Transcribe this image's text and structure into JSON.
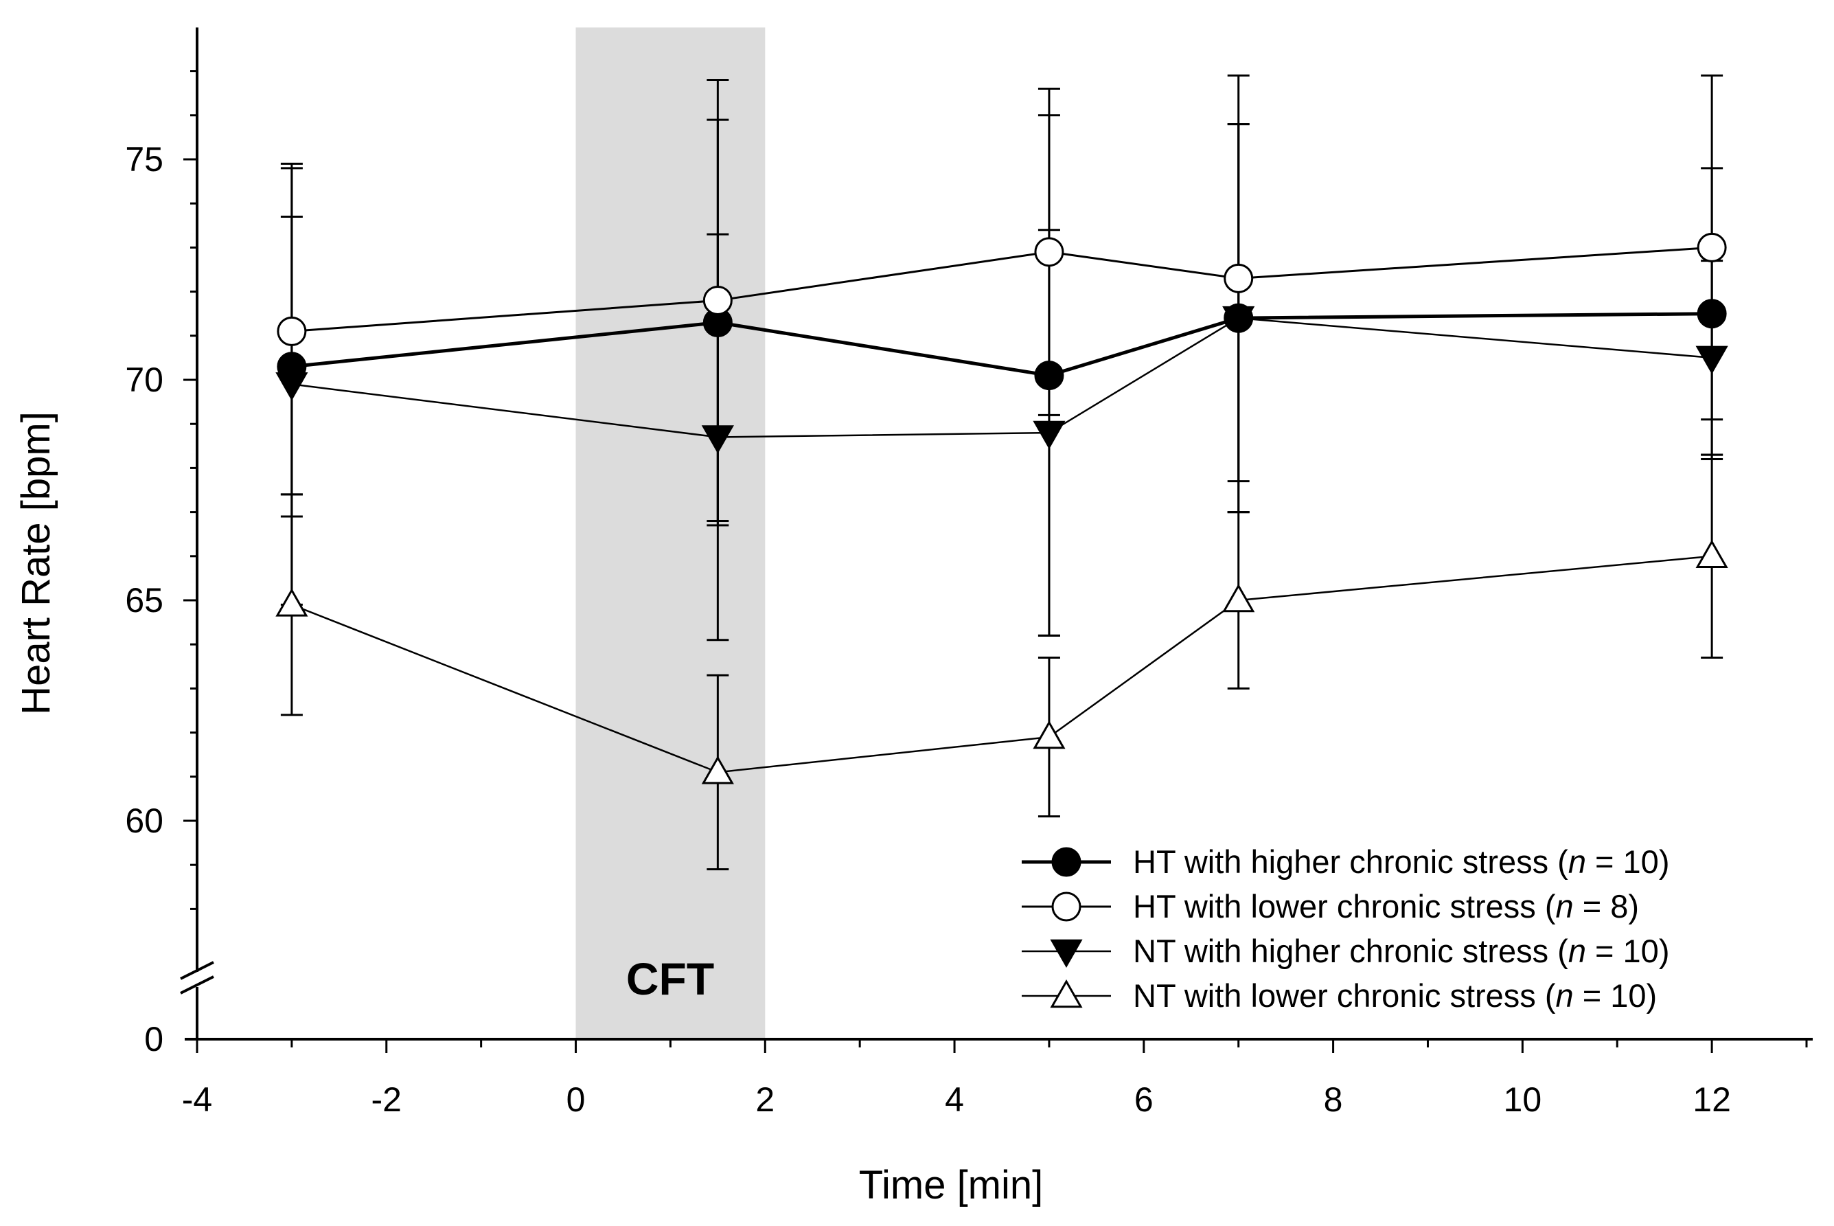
{
  "chart_data": {
    "type": "line",
    "title": "",
    "xlabel": "Time [min]",
    "ylabel": "Heart Rate [bpm]",
    "xlim": [
      -4,
      13
    ],
    "ylim": [
      57,
      78
    ],
    "x_ticks": [
      -4,
      -2,
      0,
      2,
      4,
      6,
      8,
      10,
      12
    ],
    "x_tick_labels": [
      "-4",
      "-2",
      "0",
      "2",
      "4",
      "6",
      "8",
      "10",
      "12"
    ],
    "y_ticks": [
      60,
      65,
      70,
      75
    ],
    "y_tick_labels": [
      "60",
      "65",
      "70",
      "75"
    ],
    "y_axis_break": true,
    "y_zero_label": "0",
    "shaded_region": {
      "x_start": 0,
      "x_end": 2,
      "label": "CFT",
      "color": "#dcdcdc"
    },
    "legend_position": "bottom-right",
    "series": [
      {
        "name": "HT with higher chronic stress",
        "n_label": "n",
        "n_value": " = 10)",
        "marker": "filled-circle",
        "line_width": 5,
        "x": [
          -3,
          1.5,
          5,
          7,
          12
        ],
        "y": [
          70.3,
          71.3,
          70.1,
          71.4,
          71.5
        ],
        "err": [
          3.4,
          4.6,
          5.9,
          4.4,
          3.3
        ]
      },
      {
        "name": "HT with lower chronic stress",
        "n_label": "n",
        "n_value": " = 8)",
        "marker": "open-circle",
        "line_width": 3,
        "x": [
          -3,
          1.5,
          5,
          7,
          12
        ],
        "y": [
          71.1,
          71.8,
          72.9,
          72.3,
          73.0
        ],
        "err": [
          3.7,
          5.0,
          3.7,
          4.6,
          3.9
        ]
      },
      {
        "name": "NT with higher chronic stress",
        "n_label": "n",
        "n_value": " = 10)",
        "marker": "filled-triangle-down",
        "line_width": 2.5,
        "x": [
          -3,
          1.5,
          5,
          7,
          12
        ],
        "y": [
          69.9,
          68.7,
          68.8,
          71.4,
          70.5
        ],
        "err": [
          5.0,
          4.6,
          4.6,
          4.4,
          2.2
        ]
      },
      {
        "name": "NT with lower chronic stress",
        "n_label": "n",
        "n_value": " = 10)",
        "marker": "open-triangle-up",
        "line_width": 2.5,
        "x": [
          -3,
          1.5,
          5,
          7,
          12
        ],
        "y": [
          64.9,
          61.1,
          61.9,
          65.0,
          66.0
        ],
        "err": [
          2.5,
          2.2,
          1.8,
          2.0,
          2.3
        ]
      }
    ]
  }
}
